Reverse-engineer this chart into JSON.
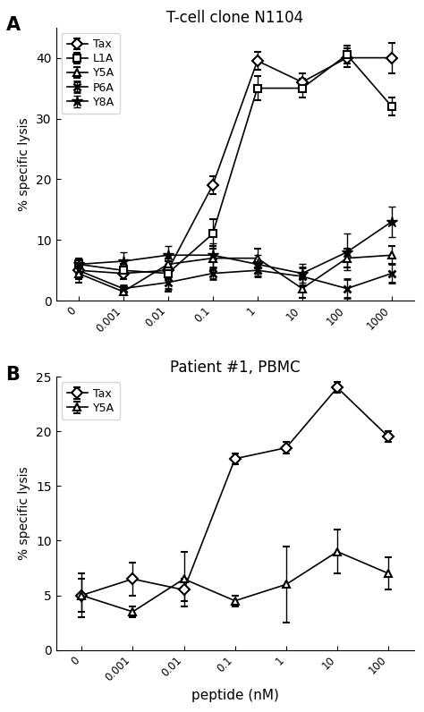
{
  "panel_A": {
    "title": "T-cell clone N1104",
    "ylabel": "% specific lysis",
    "ylim": [
      0,
      45
    ],
    "yticks": [
      0,
      10,
      20,
      30,
      40
    ],
    "x_labels": [
      "0",
      "0.001",
      "0.01",
      "0.1",
      "1",
      "10",
      "100",
      "1000"
    ],
    "x_vals": [
      0,
      0.001,
      0.01,
      0.1,
      1,
      10,
      100,
      1000
    ],
    "series": {
      "Tax": {
        "y": [
          5.0,
          4.5,
          5.0,
          19.0,
          39.5,
          36.0,
          40.0,
          40.0
        ],
        "yerr": [
          2.0,
          1.0,
          1.5,
          1.5,
          1.5,
          1.5,
          1.5,
          2.5
        ],
        "marker": "D",
        "markersize": 6,
        "markeredgewidth": 1.5,
        "filled": false
      },
      "L1A": {
        "y": [
          6.0,
          5.0,
          4.5,
          11.0,
          35.0,
          35.0,
          40.5,
          32.0
        ],
        "yerr": [
          1.0,
          1.0,
          3.0,
          2.5,
          2.0,
          1.5,
          1.5,
          1.5
        ],
        "marker": "s",
        "markersize": 6,
        "markeredgewidth": 1.5,
        "filled": false
      },
      "Y5A": {
        "y": [
          4.5,
          1.5,
          6.0,
          7.0,
          7.0,
          2.0,
          7.0,
          7.5
        ],
        "yerr": [
          1.0,
          0.5,
          1.0,
          2.0,
          1.5,
          1.5,
          1.5,
          1.5
        ],
        "marker": "^",
        "markersize": 6,
        "markeredgewidth": 1.5,
        "filled": false
      },
      "P6A": {
        "y": [
          5.0,
          2.0,
          3.0,
          4.5,
          5.0,
          4.0,
          2.0,
          4.5
        ],
        "yerr": [
          1.0,
          0.5,
          1.0,
          1.0,
          1.0,
          1.5,
          1.5,
          1.5
        ],
        "marker": "x",
        "markersize": 6,
        "markeredgewidth": 2.0,
        "filled": true
      },
      "Y8A": {
        "y": [
          6.0,
          6.5,
          7.5,
          7.5,
          6.0,
          4.5,
          8.0,
          13.0
        ],
        "yerr": [
          1.0,
          1.5,
          1.5,
          2.0,
          1.5,
          1.5,
          3.0,
          2.5
        ],
        "marker": "*",
        "markersize": 9,
        "markeredgewidth": 1.0,
        "filled": true
      }
    }
  },
  "panel_B": {
    "title": "Patient #1, PBMC",
    "xlabel": "peptide (nM)",
    "ylabel": "% specific lysis",
    "ylim": [
      0,
      25
    ],
    "yticks": [
      0,
      5,
      10,
      15,
      20,
      25
    ],
    "x_labels": [
      "0",
      "0.001",
      "0.01",
      "0.1",
      "1",
      "10",
      "100"
    ],
    "x_vals": [
      0,
      0.001,
      0.01,
      0.1,
      1,
      10,
      100
    ],
    "series": {
      "Tax": {
        "y": [
          5.0,
          6.5,
          5.5,
          17.5,
          18.5,
          24.0,
          19.5
        ],
        "yerr": [
          1.5,
          1.5,
          1.0,
          0.5,
          0.5,
          0.5,
          0.5
        ],
        "marker": "D",
        "markersize": 6,
        "markeredgewidth": 1.5,
        "filled": false
      },
      "Y5A": {
        "y": [
          5.0,
          3.5,
          6.5,
          4.5,
          6.0,
          9.0,
          7.0
        ],
        "yerr": [
          2.0,
          0.5,
          2.5,
          0.5,
          3.5,
          2.0,
          1.5
        ],
        "marker": "^",
        "markersize": 6,
        "markeredgewidth": 1.5,
        "filled": false
      }
    }
  }
}
